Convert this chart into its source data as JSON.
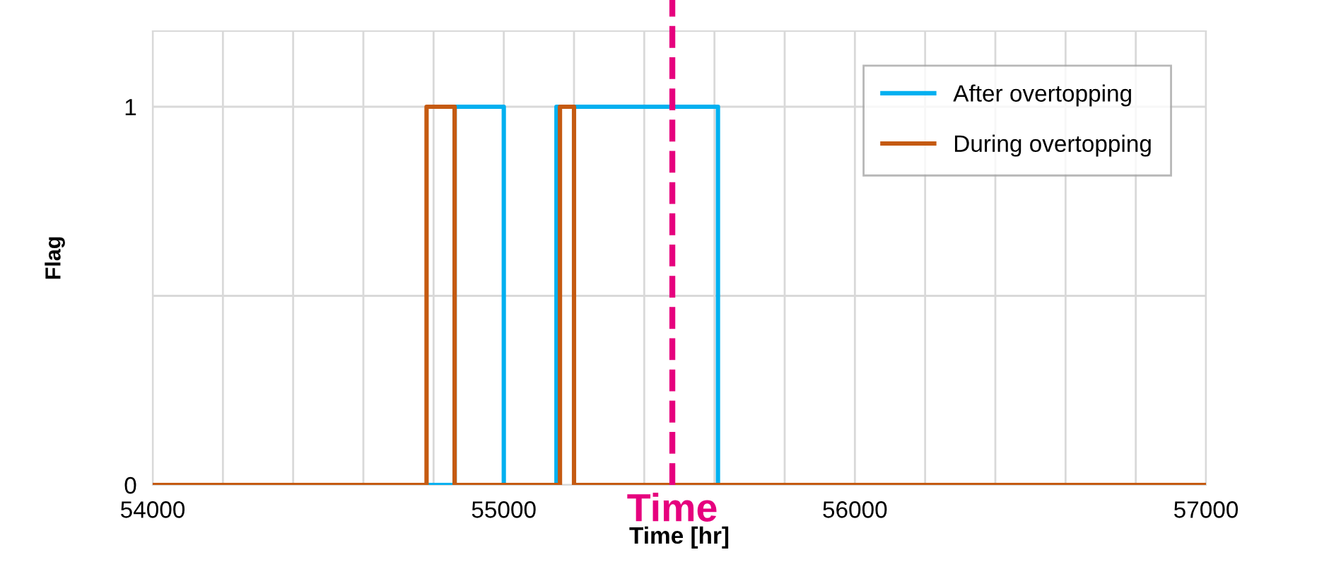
{
  "chart_data": {
    "type": "step",
    "xlabel": "Time [hr]",
    "ylabel": "Flag",
    "series": [
      {
        "name": "After overtopping",
        "color": "#00b0f0",
        "x": [
          54000,
          54860,
          55000,
          55150,
          55610,
          57000
        ],
        "values": [
          0,
          1,
          0,
          1,
          0,
          0
        ]
      },
      {
        "name": "During overtopping",
        "color": "#c55a11",
        "x": [
          54000,
          54780,
          54860,
          55160,
          55200,
          57000
        ],
        "values": [
          0,
          1,
          0,
          1,
          0,
          0
        ]
      }
    ],
    "xlim": [
      54000,
      57000
    ],
    "xticks": [
      54000,
      {
        "value": 54200,
        "label": null
      },
      {
        "value": 54400,
        "label": null
      },
      {
        "value": 54600,
        "label": null
      },
      {
        "value": 54800,
        "label": null
      },
      55000,
      {
        "value": 55200,
        "label": null
      },
      {
        "value": 55400,
        "label": null
      },
      {
        "value": 55600,
        "label": null
      },
      {
        "value": 55800,
        "label": null
      },
      56000,
      {
        "value": 56200,
        "label": null
      },
      {
        "value": 56400,
        "label": null
      },
      {
        "value": 56600,
        "label": null
      },
      {
        "value": 56800,
        "label": null
      },
      57000
    ],
    "ylim": [
      0,
      1.2
    ],
    "yticks": [
      0,
      {
        "value": 0.5,
        "label": null
      },
      1
    ],
    "ref_lines": [
      {
        "axis": "x",
        "value": 55480,
        "label": "Time",
        "color": "#e6007e",
        "line_style": "dashed"
      }
    ],
    "grid": true,
    "legend": "top right",
    "line_style": "solid",
    "marker": "none"
  }
}
